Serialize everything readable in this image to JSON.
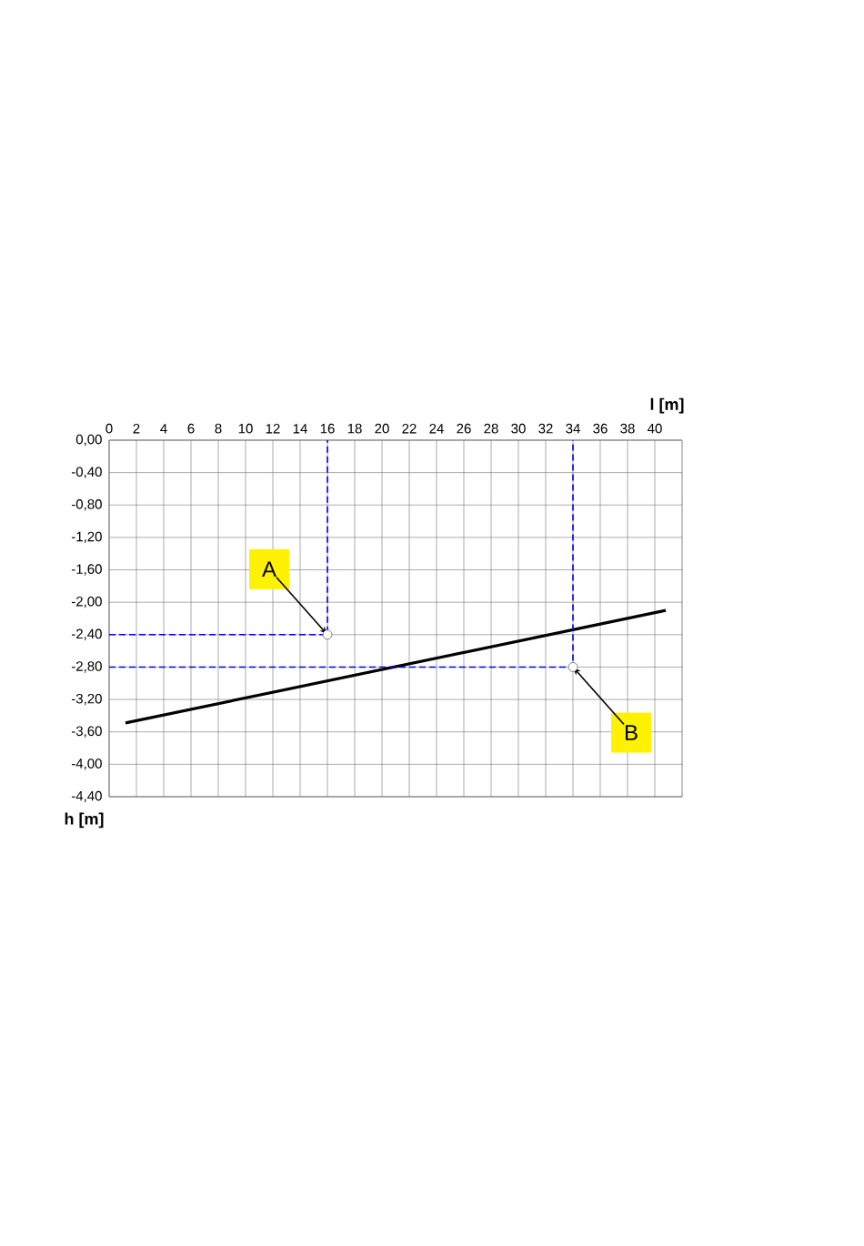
{
  "chart_data": {
    "type": "line",
    "xlabel": "l [m]",
    "ylabel": "h [m]",
    "xlim": [
      0,
      42
    ],
    "ylim": [
      -4.4,
      0
    ],
    "xticks": [
      0,
      2,
      4,
      6,
      8,
      10,
      12,
      14,
      16,
      18,
      20,
      22,
      24,
      26,
      28,
      30,
      32,
      34,
      36,
      38,
      40
    ],
    "yticks": [
      {
        "value": 0,
        "label": "0,00"
      },
      {
        "value": -0.4,
        "label": "-0,40"
      },
      {
        "value": -0.8,
        "label": "-0,80"
      },
      {
        "value": -1.2,
        "label": "-1,20"
      },
      {
        "value": -1.6,
        "label": "-1,60"
      },
      {
        "value": -2.0,
        "label": "-2,00"
      },
      {
        "value": -2.4,
        "label": "-2,40"
      },
      {
        "value": -2.8,
        "label": "-2,80"
      },
      {
        "value": -3.2,
        "label": "-3,20"
      },
      {
        "value": -3.6,
        "label": "-3,60"
      },
      {
        "value": -4.0,
        "label": "-4,00"
      },
      {
        "value": -4.4,
        "label": "-4,40"
      }
    ],
    "grid": true,
    "series": [
      {
        "type": "line",
        "x": [
          1.2,
          40.8
        ],
        "values": [
          -3.49,
          -2.1
        ],
        "color": "#000000",
        "line_style": "solid"
      },
      {
        "type": "line",
        "x": [
          0,
          16,
          16
        ],
        "values": [
          -2.4,
          -2.4,
          0
        ],
        "color": "#0000ff",
        "line_style": "dashed"
      },
      {
        "type": "line",
        "x": [
          0,
          34,
          34
        ],
        "values": [
          -2.8,
          -2.8,
          0
        ],
        "color": "#0000ff",
        "line_style": "dashed"
      },
      {
        "type": "scatter",
        "x": [
          16,
          34
        ],
        "values": [
          -2.4,
          -2.8
        ],
        "color": "#ffffff",
        "marker": "circle"
      }
    ],
    "annotations": [
      {
        "text": "A",
        "x": 16,
        "y": -2.4
      },
      {
        "text": "B",
        "x": 34,
        "y": -2.8
      }
    ]
  }
}
